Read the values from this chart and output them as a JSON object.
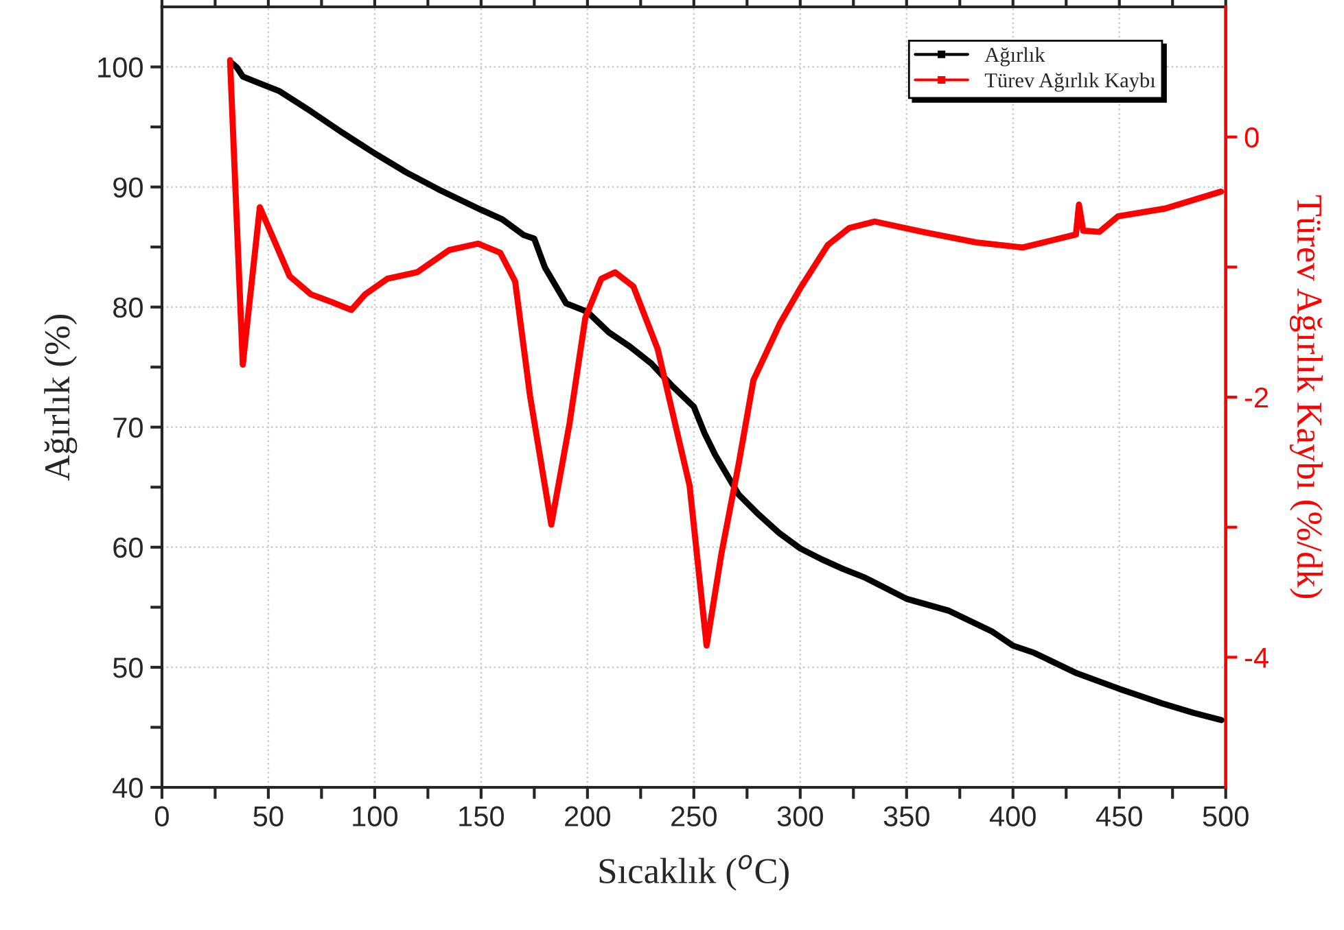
{
  "chart_data": {
    "type": "line",
    "xlabel": "Sıcaklık ($^{o}$C)",
    "ylabel": "Ağırlık (%)",
    "y2label": "Türev Ağırlık Kaybı (%/dk)",
    "xlim": [
      0,
      500
    ],
    "xticks": [
      0,
      {
        "value": 25,
        "label": null
      },
      50,
      {
        "value": 75,
        "label": null
      },
      100,
      {
        "value": 125,
        "label": null
      },
      150,
      {
        "value": 175,
        "label": null
      },
      200,
      {
        "value": 225,
        "label": null
      },
      250,
      {
        "value": 275,
        "label": null
      },
      300,
      {
        "value": 325,
        "label": null
      },
      350,
      {
        "value": 375,
        "label": null
      },
      400,
      {
        "value": 425,
        "label": null
      },
      450,
      {
        "value": 475,
        "label": null
      },
      500
    ],
    "ylim": [
      40,
      105
    ],
    "yticks": [
      40,
      {
        "value": 45,
        "label": null
      },
      50,
      {
        "value": 55,
        "label": null
      },
      60,
      {
        "value": 65,
        "label": null
      },
      70,
      {
        "value": 75,
        "label": null
      },
      80,
      {
        "value": 85,
        "label": null
      },
      90,
      {
        "value": 95,
        "label": null
      },
      100
    ],
    "y2lim": [
      -5,
      1
    ],
    "y2ticks": [
      -4,
      {
        "value": -3,
        "label": null
      },
      -2,
      {
        "value": -1,
        "label": null
      },
      0
    ],
    "grid": true,
    "legend": "top right",
    "marker": "none",
    "line_style": "solid",
    "series": [
      {
        "name": "Ağırlık",
        "color": "#000000",
        "x": [
          33,
          35,
          38,
          45,
          55,
          70,
          85,
          100,
          115,
          130,
          150,
          160,
          170,
          175,
          180,
          185,
          190,
          200,
          210,
          220,
          230,
          240,
          250,
          255,
          260,
          265,
          271,
          280,
          290,
          300,
          310,
          320,
          330,
          350,
          370,
          390,
          400,
          410,
          430,
          450,
          470,
          485,
          498
        ],
        "values": [
          100.3,
          100,
          99.2,
          98.7,
          98,
          96.3,
          94.5,
          92.8,
          91.2,
          89.8,
          88.1,
          87.3,
          86,
          85.7,
          83.3,
          81.8,
          80.3,
          79.6,
          77.9,
          76.7,
          75.3,
          73.4,
          71.7,
          69.5,
          67.7,
          66.2,
          64.4,
          62.8,
          61.2,
          59.9,
          59,
          58.2,
          57.5,
          55.7,
          54.7,
          53,
          51.8,
          51.2,
          49.5,
          48.2,
          47,
          46.2,
          45.6
        ]
      },
      {
        "name": "Türev Ağırlık Kaybı",
        "color": "#ff0000",
        "axis": "y2",
        "x": [
          32,
          38,
          46,
          60,
          70,
          80,
          89,
          95.5,
          106,
          120,
          135,
          148.5,
          159,
          166,
          173,
          183,
          191.6,
          199,
          206.5,
          213,
          221.6,
          233,
          248,
          256,
          263,
          271,
          278,
          290.6,
          300.5,
          313,
          323,
          335,
          357.6,
          382.6,
          404.5,
          429.6,
          431,
          433,
          440.6,
          449.4,
          471.6,
          497.8
        ],
        "values": [
          0.59,
          -1.75,
          -0.54,
          -1.07,
          -1.21,
          -1.27,
          -1.33,
          -1.21,
          -1.09,
          -1.04,
          -0.87,
          -0.82,
          -0.89,
          -1.11,
          -1.99,
          -2.98,
          -2.2,
          -1.39,
          -1.09,
          -1.04,
          -1.15,
          -1.63,
          -2.68,
          -3.91,
          -3.2,
          -2.52,
          -1.87,
          -1.43,
          -1.15,
          -0.83,
          -0.7,
          -0.65,
          -0.73,
          -0.81,
          -0.85,
          -0.75,
          -0.52,
          -0.72,
          -0.73,
          -0.61,
          -0.55,
          -0.42
        ]
      }
    ]
  }
}
